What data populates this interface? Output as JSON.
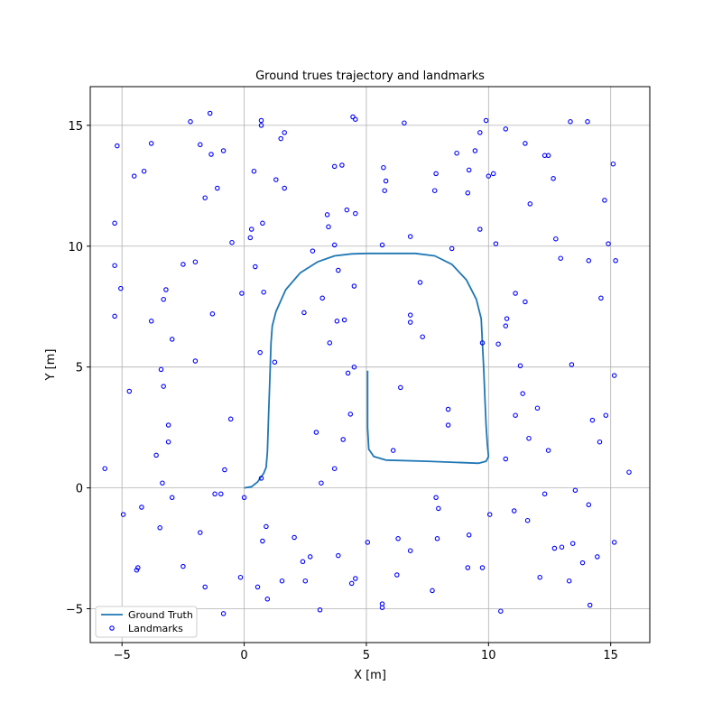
{
  "chart_data": {
    "type": "line+scatter",
    "title": "Ground trues trajectory and landmarks",
    "xlabel": "X [m]",
    "ylabel": "Y [m]",
    "xlim": [
      -6.3,
      16.6
    ],
    "ylim": [
      -6.4,
      16.6
    ],
    "xticks": [
      -5,
      0,
      5,
      10,
      15
    ],
    "yticks": [
      -5,
      0,
      5,
      10,
      15
    ],
    "xtick_labels": [
      "−5",
      "0",
      "5",
      "10",
      "15"
    ],
    "ytick_labels": [
      "−5",
      "0",
      "5",
      "10",
      "15"
    ],
    "grid": true,
    "legend": "lower-left",
    "series": [
      {
        "name": "Ground Truth",
        "type": "line",
        "color": "#1f77b4",
        "x": [
          0.0,
          0.3,
          0.55,
          0.8,
          0.9,
          0.95,
          1.0,
          1.05,
          1.1,
          1.15,
          1.3,
          1.7,
          2.3,
          3.0,
          3.7,
          4.4,
          5.0,
          6.0,
          7.0,
          7.8,
          8.5,
          9.1,
          9.5,
          9.7,
          9.75,
          9.8,
          9.85,
          9.9,
          9.95,
          10.0,
          9.9,
          9.6,
          7.5,
          5.8,
          5.3,
          5.1,
          5.05,
          5.05,
          5.05
        ],
        "y": [
          0.0,
          0.05,
          0.25,
          0.6,
          0.85,
          1.5,
          3.0,
          4.5,
          6.0,
          6.7,
          7.3,
          8.2,
          8.9,
          9.35,
          9.6,
          9.68,
          9.7,
          9.7,
          9.7,
          9.6,
          9.25,
          8.6,
          7.8,
          7.0,
          6.0,
          5.0,
          3.8,
          2.6,
          1.8,
          1.3,
          1.1,
          1.02,
          1.1,
          1.15,
          1.3,
          1.6,
          2.5,
          4.0,
          4.85
        ]
      },
      {
        "name": "Landmarks",
        "type": "scatter",
        "color": "#0000ff",
        "points": [
          [
            -5.2,
            14.15
          ],
          [
            -4.5,
            12.9
          ],
          [
            -4.1,
            13.1
          ],
          [
            -3.8,
            14.25
          ],
          [
            -2.2,
            15.15
          ],
          [
            -1.8,
            14.2
          ],
          [
            -1.4,
            15.5
          ],
          [
            -1.35,
            13.8
          ],
          [
            -0.85,
            13.95
          ],
          [
            -1.6,
            12.0
          ],
          [
            -1.1,
            12.4
          ],
          [
            0.7,
            15.2
          ],
          [
            0.7,
            15.0
          ],
          [
            1.5,
            14.45
          ],
          [
            1.65,
            14.7
          ],
          [
            0.4,
            13.1
          ],
          [
            1.3,
            12.75
          ],
          [
            1.65,
            12.4
          ],
          [
            3.7,
            13.3
          ],
          [
            4.0,
            13.35
          ],
          [
            4.45,
            15.35
          ],
          [
            4.55,
            15.25
          ],
          [
            5.7,
            13.25
          ],
          [
            5.8,
            12.7
          ],
          [
            5.75,
            12.3
          ],
          [
            6.55,
            15.1
          ],
          [
            7.85,
            13.0
          ],
          [
            7.8,
            12.3
          ],
          [
            8.7,
            13.85
          ],
          [
            9.2,
            13.15
          ],
          [
            9.15,
            12.2
          ],
          [
            9.45,
            13.95
          ],
          [
            9.65,
            14.7
          ],
          [
            9.9,
            15.2
          ],
          [
            10.0,
            12.9
          ],
          [
            10.2,
            13.0
          ],
          [
            10.7,
            14.85
          ],
          [
            11.5,
            14.25
          ],
          [
            11.7,
            11.75
          ],
          [
            12.3,
            13.75
          ],
          [
            12.45,
            13.75
          ],
          [
            12.65,
            12.8
          ],
          [
            13.35,
            15.15
          ],
          [
            14.05,
            15.15
          ],
          [
            15.1,
            13.4
          ],
          [
            14.75,
            11.9
          ],
          [
            -5.3,
            10.95
          ],
          [
            -5.3,
            9.2
          ],
          [
            -5.05,
            8.25
          ],
          [
            -5.3,
            7.1
          ],
          [
            -3.8,
            6.9
          ],
          [
            -3.3,
            7.8
          ],
          [
            -3.2,
            8.2
          ],
          [
            -2.5,
            9.25
          ],
          [
            -2.0,
            9.35
          ],
          [
            -0.5,
            10.15
          ],
          [
            0.25,
            10.35
          ],
          [
            0.3,
            10.7
          ],
          [
            0.75,
            10.95
          ],
          [
            0.45,
            9.15
          ],
          [
            -0.1,
            8.05
          ],
          [
            0.8,
            8.1
          ],
          [
            2.8,
            9.8
          ],
          [
            3.4,
            11.3
          ],
          [
            3.45,
            10.8
          ],
          [
            3.7,
            10.05
          ],
          [
            3.85,
            9.0
          ],
          [
            4.2,
            11.5
          ],
          [
            4.55,
            11.35
          ],
          [
            3.2,
            7.85
          ],
          [
            4.5,
            8.35
          ],
          [
            5.65,
            10.05
          ],
          [
            6.8,
            10.4
          ],
          [
            7.2,
            8.5
          ],
          [
            8.5,
            9.9
          ],
          [
            9.65,
            10.7
          ],
          [
            10.3,
            10.1
          ],
          [
            11.1,
            8.05
          ],
          [
            11.5,
            7.7
          ],
          [
            10.75,
            7.0
          ],
          [
            10.7,
            6.7
          ],
          [
            12.75,
            10.3
          ],
          [
            12.95,
            9.5
          ],
          [
            14.1,
            9.4
          ],
          [
            14.9,
            10.1
          ],
          [
            15.2,
            9.4
          ],
          [
            14.6,
            7.85
          ],
          [
            -1.3,
            7.2
          ],
          [
            -2.95,
            6.15
          ],
          [
            -3.4,
            4.9
          ],
          [
            -3.3,
            4.2
          ],
          [
            -4.7,
            4.0
          ],
          [
            -3.1,
            2.6
          ],
          [
            -3.1,
            1.9
          ],
          [
            -3.6,
            1.35
          ],
          [
            -3.35,
            0.2
          ],
          [
            -5.7,
            0.8
          ],
          [
            -2.0,
            5.25
          ],
          [
            0.65,
            5.6
          ],
          [
            1.25,
            5.2
          ],
          [
            2.45,
            7.25
          ],
          [
            3.5,
            6.0
          ],
          [
            3.8,
            6.9
          ],
          [
            4.1,
            6.95
          ],
          [
            4.25,
            4.75
          ],
          [
            4.5,
            5.0
          ],
          [
            4.35,
            3.05
          ],
          [
            4.05,
            2.0
          ],
          [
            2.95,
            2.3
          ],
          [
            3.15,
            0.2
          ],
          [
            3.7,
            0.8
          ],
          [
            0.7,
            0.4
          ],
          [
            -0.55,
            2.85
          ],
          [
            -0.8,
            0.75
          ],
          [
            6.8,
            7.15
          ],
          [
            6.8,
            6.85
          ],
          [
            7.3,
            6.25
          ],
          [
            6.4,
            4.15
          ],
          [
            6.1,
            1.55
          ],
          [
            8.35,
            3.25
          ],
          [
            8.35,
            2.6
          ],
          [
            9.75,
            6.0
          ],
          [
            10.4,
            5.95
          ],
          [
            11.3,
            5.05
          ],
          [
            11.4,
            3.9
          ],
          [
            12.0,
            3.3
          ],
          [
            11.1,
            3.0
          ],
          [
            11.65,
            2.05
          ],
          [
            10.7,
            1.2
          ],
          [
            12.45,
            1.55
          ],
          [
            13.4,
            5.1
          ],
          [
            15.15,
            4.65
          ],
          [
            14.25,
            2.8
          ],
          [
            14.8,
            3.0
          ],
          [
            14.55,
            1.9
          ],
          [
            15.75,
            0.65
          ],
          [
            -4.95,
            -1.1
          ],
          [
            -4.2,
            -0.8
          ],
          [
            -2.95,
            -0.4
          ],
          [
            -1.2,
            -0.25
          ],
          [
            -0.95,
            -0.25
          ],
          [
            0.0,
            -0.4
          ],
          [
            -3.45,
            -1.65
          ],
          [
            -1.8,
            -1.85
          ],
          [
            0.75,
            -2.2
          ],
          [
            0.9,
            -1.6
          ],
          [
            2.05,
            -2.05
          ],
          [
            2.4,
            -3.05
          ],
          [
            2.7,
            -2.85
          ],
          [
            -2.5,
            -3.25
          ],
          [
            -4.35,
            -3.3
          ],
          [
            -4.4,
            -3.4
          ],
          [
            -1.6,
            -4.1
          ],
          [
            -0.15,
            -3.7
          ],
          [
            0.55,
            -4.1
          ],
          [
            1.55,
            -3.85
          ],
          [
            2.5,
            -3.85
          ],
          [
            0.95,
            -4.6
          ],
          [
            -0.85,
            -5.2
          ],
          [
            3.85,
            -2.8
          ],
          [
            4.4,
            -3.95
          ],
          [
            4.55,
            -3.75
          ],
          [
            5.05,
            -2.25
          ],
          [
            6.3,
            -2.1
          ],
          [
            6.8,
            -2.6
          ],
          [
            6.25,
            -3.6
          ],
          [
            5.65,
            -4.8
          ],
          [
            5.65,
            -4.95
          ],
          [
            3.1,
            -5.05
          ],
          [
            7.7,
            -4.25
          ],
          [
            7.85,
            -0.4
          ],
          [
            7.95,
            -0.85
          ],
          [
            7.9,
            -2.1
          ],
          [
            9.2,
            -1.95
          ],
          [
            9.15,
            -3.3
          ],
          [
            9.75,
            -3.3
          ],
          [
            10.05,
            -1.1
          ],
          [
            11.05,
            -0.95
          ],
          [
            11.6,
            -1.35
          ],
          [
            12.3,
            -0.25
          ],
          [
            12.1,
            -3.7
          ],
          [
            12.7,
            -2.5
          ],
          [
            13.0,
            -2.45
          ],
          [
            13.45,
            -2.3
          ],
          [
            13.55,
            -0.1
          ],
          [
            14.1,
            -0.7
          ],
          [
            13.85,
            -3.1
          ],
          [
            14.45,
            -2.85
          ],
          [
            13.3,
            -3.85
          ],
          [
            15.15,
            -2.25
          ],
          [
            14.15,
            -4.85
          ],
          [
            10.5,
            -5.1
          ]
        ]
      }
    ]
  }
}
